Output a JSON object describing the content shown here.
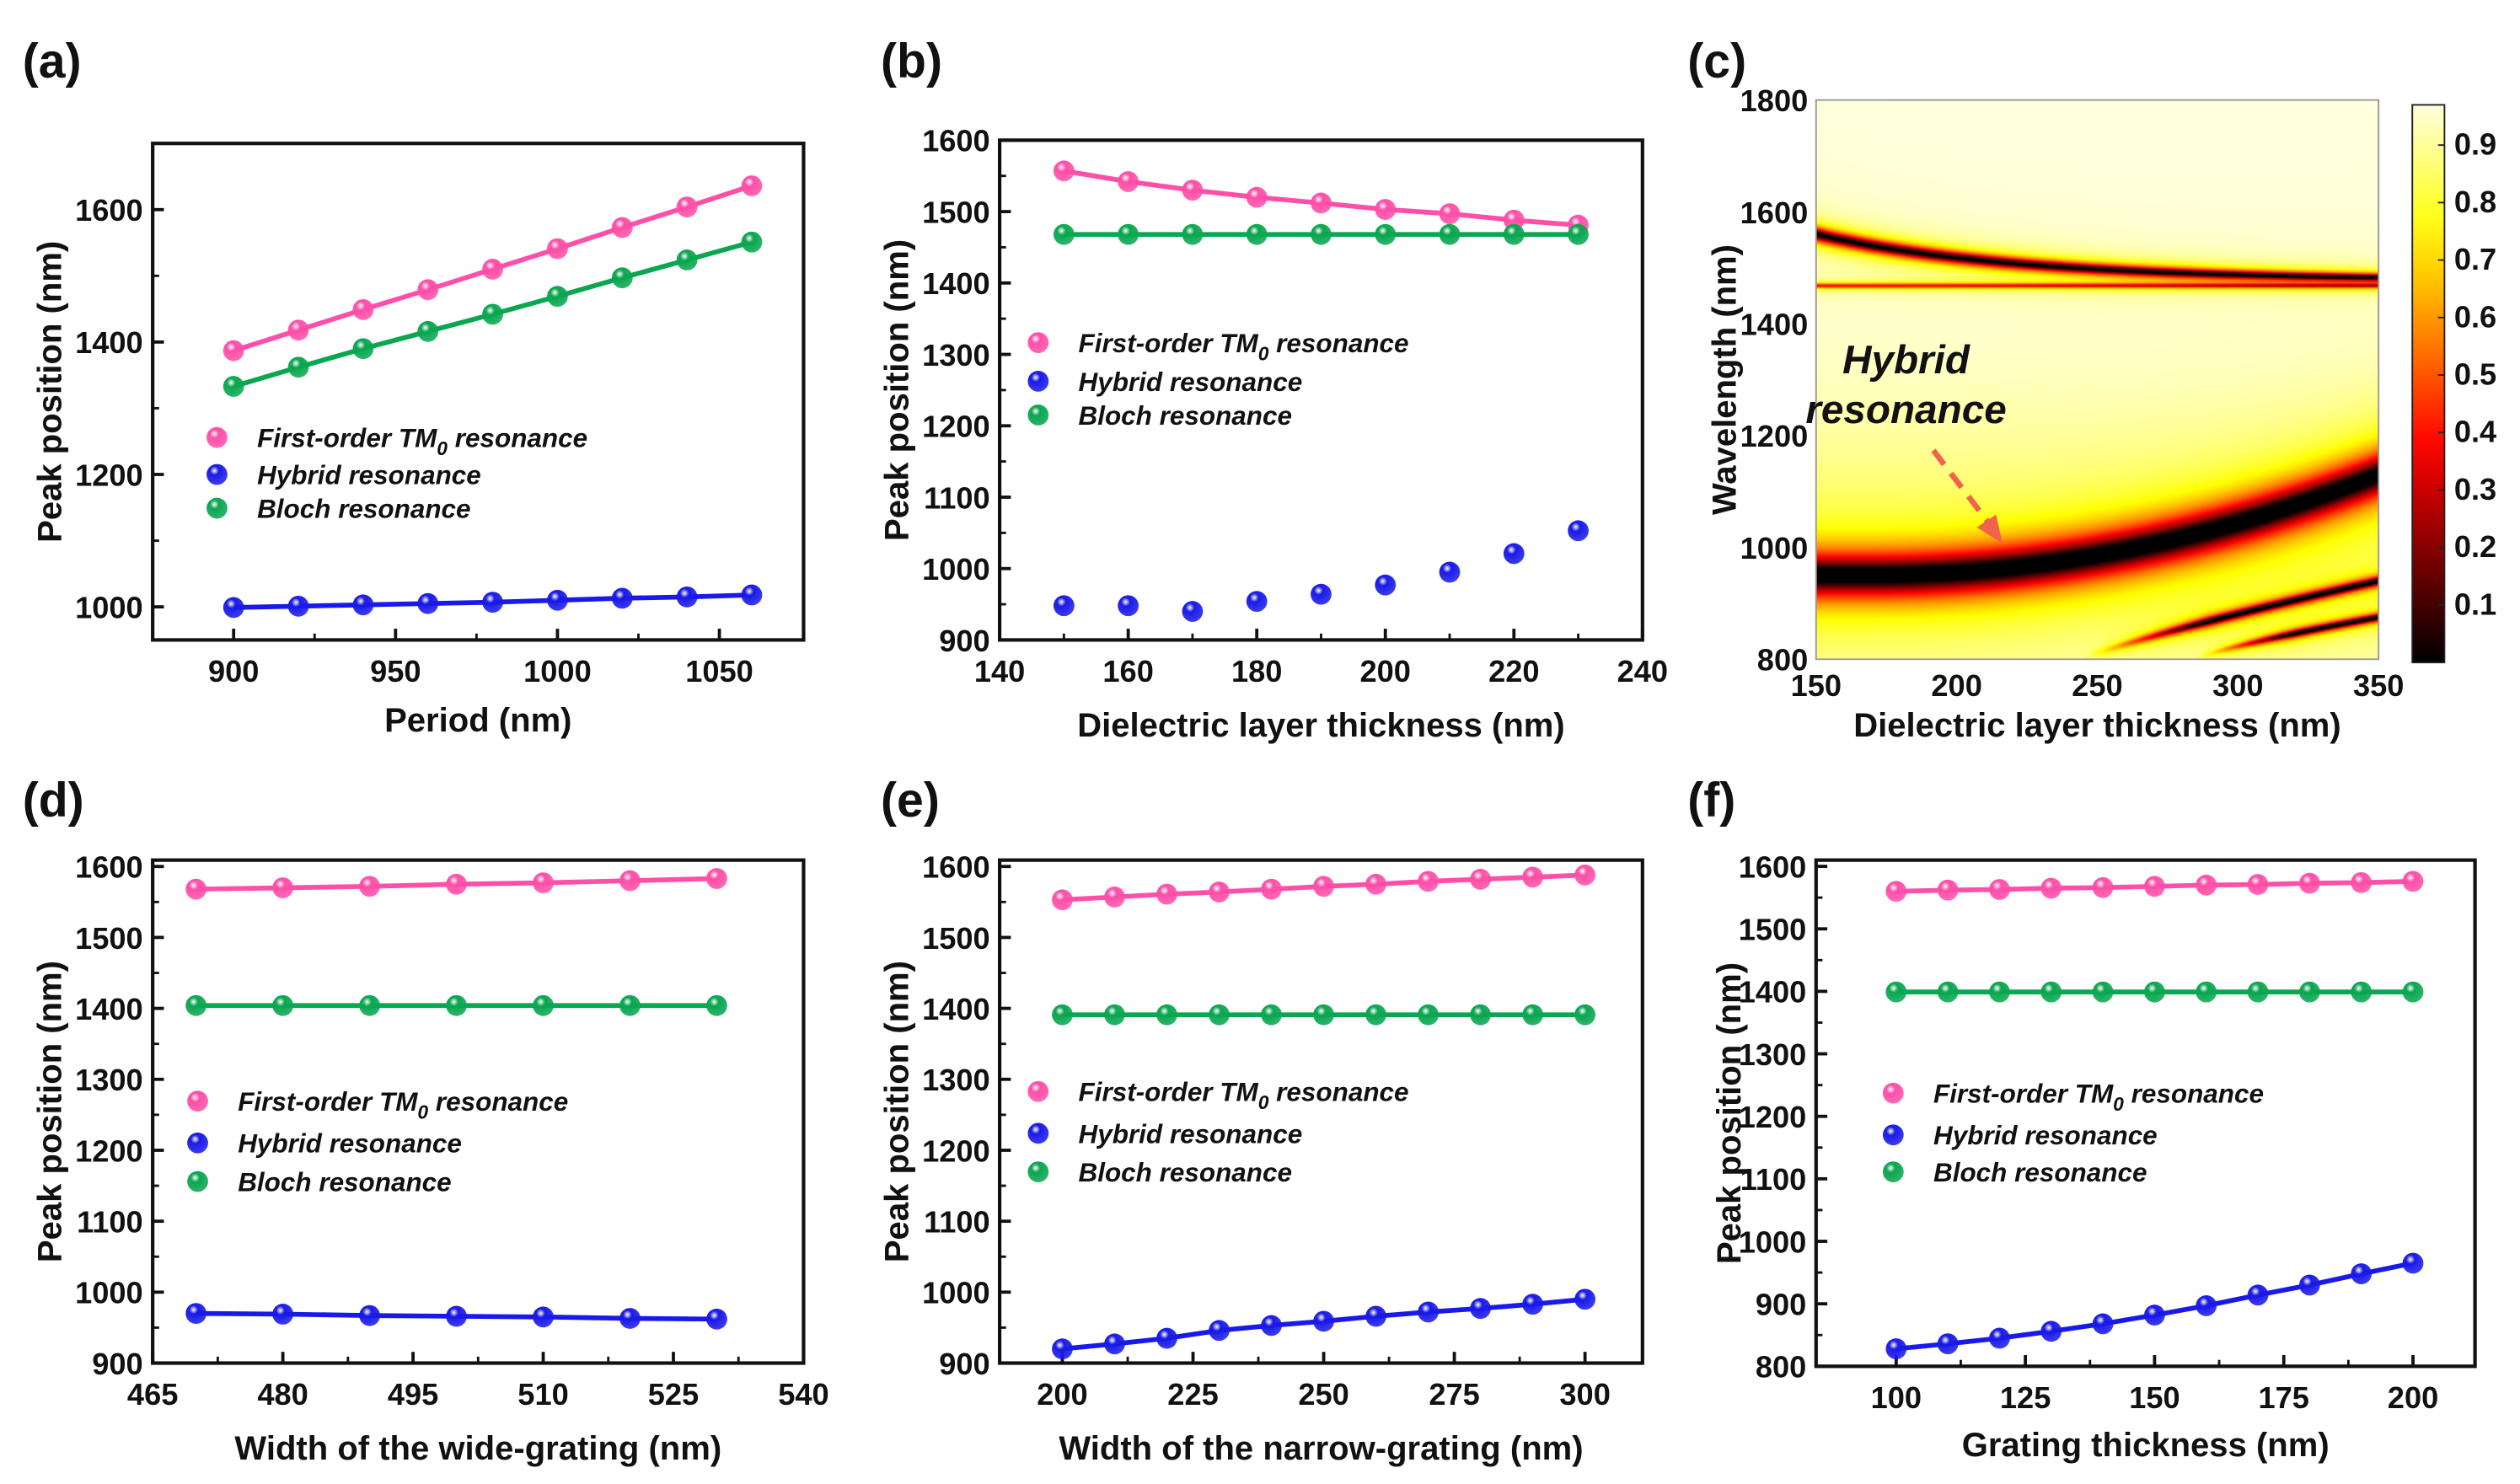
{
  "panel_labels": [
    "(a)",
    "(b)",
    "(c)",
    "(d)",
    "(e)",
    "(f)"
  ],
  "annotation": {
    "line1": "Hybrid",
    "line2": "resonance",
    "arrow_color": "#f0644e"
  },
  "colors": {
    "first_order": "#ff4fa8",
    "hybrid": "#1a1ae8",
    "bloch": "#0aa650"
  },
  "chart_data": [
    {
      "type": "line",
      "panel": "(a)",
      "xlabel": "Period (nm)",
      "ylabel": "Peak position (nm)",
      "xlim": [
        875,
        1076
      ],
      "ylim": [
        950,
        1700
      ],
      "xticks": [
        900,
        950,
        1000,
        1050
      ],
      "yticks": [
        1000,
        1200,
        1400,
        1600
      ],
      "x": [
        900,
        920,
        940,
        960,
        980,
        1000,
        1020,
        1040,
        1060
      ],
      "series": [
        {
          "name": "First-order TM0 resonance",
          "color_key": "first_order",
          "line": true,
          "values": [
            1387,
            1418,
            1449,
            1479,
            1510,
            1541,
            1573,
            1604,
            1636
          ]
        },
        {
          "name": "Hybrid resonance",
          "color_key": "hybrid",
          "line": true,
          "values": [
            999,
            1001,
            1003,
            1005,
            1007,
            1010,
            1013,
            1015,
            1018
          ]
        },
        {
          "name": "Bloch resonance",
          "color_key": "bloch",
          "line": true,
          "values": [
            1333,
            1362,
            1390,
            1416,
            1442,
            1469,
            1497,
            1524,
            1551
          ]
        }
      ]
    },
    {
      "type": "scatter",
      "panel": "(b)",
      "xlabel": "Dielectric layer thickness (nm)",
      "ylabel": "Peak position (nm)",
      "xlim": [
        140,
        240
      ],
      "ylim": [
        900,
        1600
      ],
      "xticks": [
        140,
        160,
        180,
        200,
        220,
        240
      ],
      "yticks": [
        900,
        1000,
        1100,
        1200,
        1300,
        1400,
        1500,
        1600
      ],
      "x": [
        150,
        160,
        170,
        180,
        190,
        200,
        210,
        220,
        230
      ],
      "series": [
        {
          "name": "First-order TM0 resonance",
          "color_key": "first_order",
          "line": true,
          "values": [
            1557,
            1542,
            1530,
            1520,
            1512,
            1503,
            1497,
            1488,
            1481
          ]
        },
        {
          "name": "Hybrid resonance",
          "color_key": "hybrid",
          "line": false,
          "values": [
            948,
            948,
            940,
            954,
            964,
            977,
            995,
            1021,
            1053
          ]
        },
        {
          "name": "Bloch resonance",
          "color_key": "bloch",
          "line": true,
          "values": [
            1468,
            1468,
            1468,
            1468,
            1468,
            1468,
            1468,
            1468,
            1468
          ]
        }
      ]
    },
    {
      "type": "heatmap",
      "panel": "(c)",
      "xlabel": "Dielectric layer thickness (nm)",
      "ylabel": "Wavelength (nm)",
      "xlim": [
        150,
        350
      ],
      "ylim": [
        800,
        1800
      ],
      "xticks": [
        150,
        200,
        250,
        300,
        350
      ],
      "yticks": [
        800,
        1000,
        1200,
        1400,
        1600,
        1800
      ],
      "colorbar": {
        "range": [
          0,
          0.97
        ],
        "ticks": [
          0.1,
          0.2,
          0.3,
          0.4,
          0.5,
          0.6,
          0.7,
          0.8,
          0.9
        ],
        "colormap": "hot"
      },
      "modes": [
        {
          "name": "First-order TM0",
          "wavelength_at_150": 1560,
          "wavelength_at_350": 1480
        },
        {
          "name": "Bloch",
          "wavelength": 1468
        },
        {
          "name": "Hybrid",
          "wavelength_at_150": 950,
          "wavelength_at_350": 1130
        }
      ]
    },
    {
      "type": "line",
      "panel": "(d)",
      "xlabel": "Width of the wide-grating (nm)",
      "ylabel": "Peak position (nm)",
      "xlim": [
        465,
        540
      ],
      "ylim": [
        900,
        1609
      ],
      "xticks": [
        465,
        480,
        495,
        510,
        525,
        540
      ],
      "yticks": [
        900,
        1000,
        1100,
        1200,
        1300,
        1400,
        1500,
        1600
      ],
      "x": [
        470,
        480,
        490,
        500,
        510,
        520,
        530
      ],
      "series": [
        {
          "name": "First-order TM0 resonance",
          "color_key": "first_order",
          "line": true,
          "values": [
            1568,
            1570,
            1572,
            1575,
            1577,
            1580,
            1583
          ]
        },
        {
          "name": "Hybrid resonance",
          "color_key": "hybrid",
          "line": true,
          "values": [
            970,
            969,
            967,
            966,
            965,
            963,
            962
          ]
        },
        {
          "name": "Bloch resonance",
          "color_key": "bloch",
          "line": true,
          "values": [
            1404,
            1404,
            1404,
            1404,
            1404,
            1404,
            1404
          ]
        }
      ]
    },
    {
      "type": "line",
      "panel": "(e)",
      "xlabel": "Width of the narrow-grating (nm)",
      "ylabel": "Peak position (nm)",
      "xlim": [
        188,
        311
      ],
      "ylim": [
        900,
        1609
      ],
      "xticks": [
        200,
        225,
        250,
        275,
        300
      ],
      "yticks": [
        900,
        1000,
        1100,
        1200,
        1300,
        1400,
        1500,
        1600
      ],
      "x": [
        200,
        210,
        220,
        230,
        240,
        250,
        260,
        270,
        280,
        290,
        300
      ],
      "series": [
        {
          "name": "First-order TM0 resonance",
          "color_key": "first_order",
          "line": true,
          "values": [
            1553,
            1557,
            1561,
            1564,
            1568,
            1572,
            1575,
            1579,
            1582,
            1585,
            1588
          ]
        },
        {
          "name": "Hybrid resonance",
          "color_key": "hybrid",
          "line": true,
          "values": [
            920,
            927,
            935,
            946,
            953,
            959,
            966,
            972,
            977,
            983,
            990
          ]
        },
        {
          "name": "Bloch resonance",
          "color_key": "bloch",
          "line": true,
          "values": [
            1391,
            1391,
            1391,
            1391,
            1391,
            1391,
            1391,
            1391,
            1391,
            1391,
            1391
          ]
        }
      ]
    },
    {
      "type": "line",
      "panel": "(f)",
      "xlabel": "Grating thickness  (nm)",
      "ylabel": "Peak position (nm)",
      "xlim": [
        84.5,
        212
      ],
      "ylim": [
        800,
        1610
      ],
      "xticks": [
        100,
        125,
        150,
        175,
        200
      ],
      "yticks": [
        800,
        900,
        1000,
        1100,
        1200,
        1300,
        1400,
        1500,
        1600
      ],
      "x": [
        100,
        110,
        120,
        130,
        140,
        150,
        160,
        170,
        180,
        190,
        200
      ],
      "series": [
        {
          "name": "First-order TM0 resonance",
          "color_key": "first_order",
          "line": true,
          "values": [
            1560,
            1562,
            1563,
            1565,
            1566,
            1568,
            1570,
            1571,
            1573,
            1574,
            1576
          ]
        },
        {
          "name": "Hybrid resonance",
          "color_key": "hybrid",
          "line": true,
          "values": [
            828,
            836,
            845,
            856,
            868,
            882,
            897,
            914,
            930,
            948,
            965
          ]
        },
        {
          "name": "Bloch resonance",
          "color_key": "bloch",
          "line": true,
          "values": [
            1399,
            1399,
            1399,
            1399,
            1399,
            1399,
            1399,
            1399,
            1399,
            1399,
            1399
          ]
        }
      ]
    }
  ]
}
